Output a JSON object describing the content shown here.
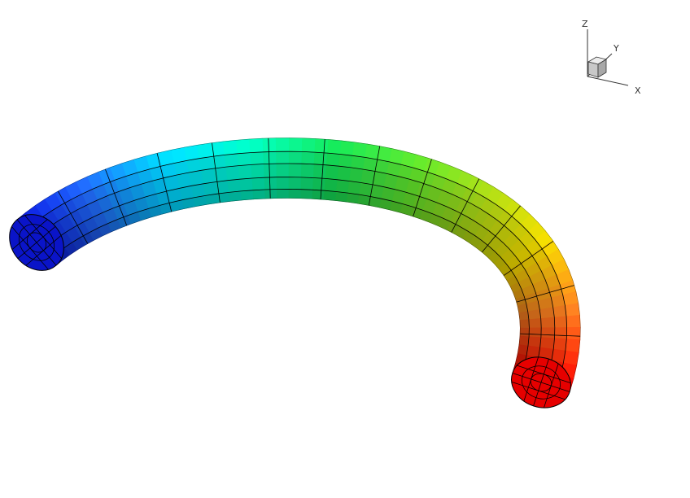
{
  "viewer": {
    "background": "#ffffff",
    "mesh_line_color": "#000000"
  },
  "orientation_axes": {
    "x_label": "X",
    "y_label": "Y",
    "z_label": "Z",
    "cube_color": "#d8d8d8"
  },
  "tube": {
    "shape": "curved-tube-arc",
    "colormap": [
      "#0a14c8",
      "#1e64e6",
      "#00c8f0",
      "#00e6b4",
      "#14d250",
      "#5ad228",
      "#a0c814",
      "#dcc800",
      "#e6781e",
      "#e60000"
    ],
    "end_start_color": "#0a14c8",
    "end_finish_color": "#e60000"
  }
}
